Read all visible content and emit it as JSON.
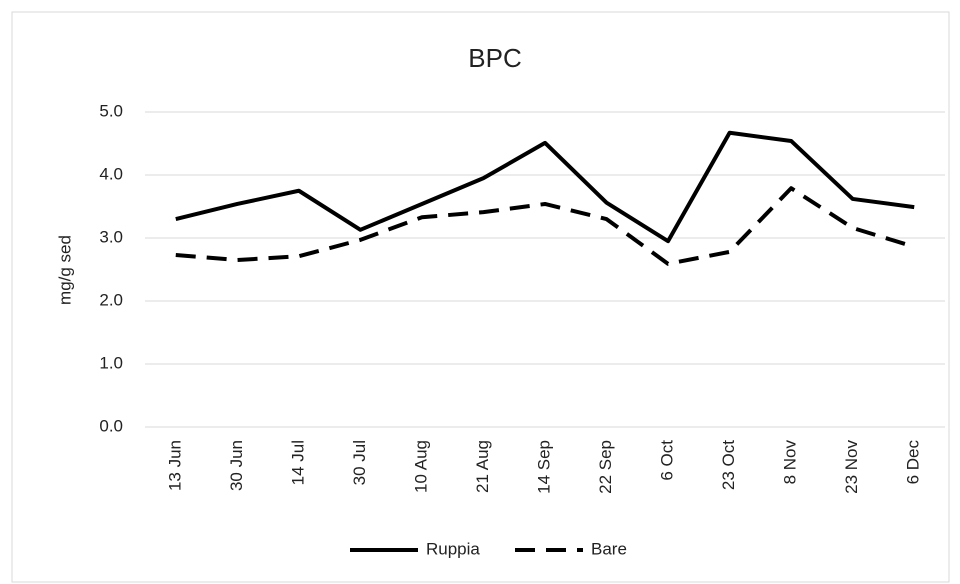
{
  "chart_data": {
    "type": "line",
    "title": "BPC",
    "y_label": "mg/g sed",
    "categories": [
      "13 Jun",
      "30 Jun",
      "14 Jul",
      "30 Jul",
      "10 Aug",
      "21 Aug",
      "14 Sep",
      "22 Sep",
      "6 Oct",
      "23 Oct",
      "8 Nov",
      "23 Nov",
      "6 Dec"
    ],
    "series": [
      {
        "name": "Ruppia",
        "color": "#000000",
        "dashed": false,
        "values": [
          3.3,
          3.54,
          3.75,
          3.13,
          3.54,
          3.95,
          4.51,
          3.56,
          2.95,
          4.67,
          4.54,
          3.62,
          3.49
        ]
      },
      {
        "name": "Bare",
        "color": "#000000",
        "dashed": true,
        "values": [
          2.73,
          2.65,
          2.71,
          2.97,
          3.33,
          3.41,
          3.54,
          3.3,
          2.59,
          2.78,
          3.79,
          3.16,
          2.86
        ]
      }
    ],
    "ylim": [
      0,
      5
    ],
    "yticks": [
      {
        "value": 0,
        "label": "0.0"
      },
      {
        "value": 1,
        "label": "1.0"
      },
      {
        "value": 2,
        "label": "2.0"
      },
      {
        "value": 3,
        "label": "3.0"
      },
      {
        "value": 4,
        "label": "4.0"
      },
      {
        "value": 5,
        "label": "5.0"
      }
    ],
    "grid": true,
    "legend": "bottom"
  }
}
